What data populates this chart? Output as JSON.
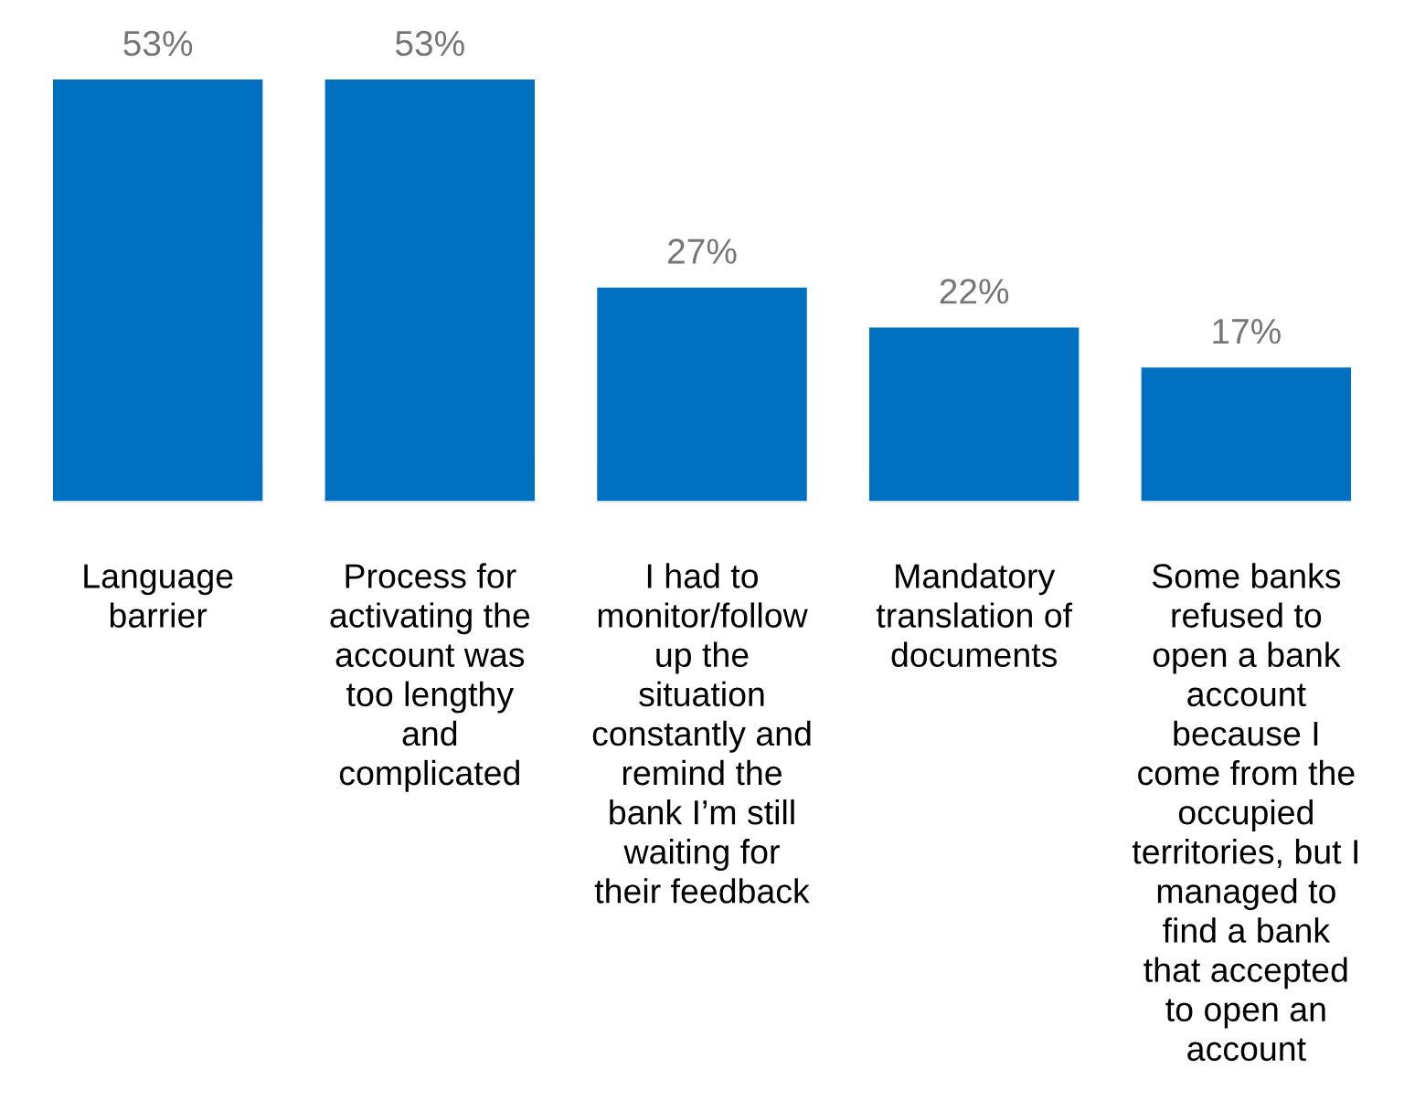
{
  "chart_data": {
    "type": "bar",
    "categories": [
      "Language\nbarrier",
      "Process for\nactivating the\naccount was\ntoo lengthy\nand\ncomplicated",
      "I had to\nmonitor/follow\nup the\nsituation\nconstantly and\nremind the\nbank I’m still\nwaiting for\ntheir feedback",
      "Mandatory\ntranslation of\ndocuments",
      "Some banks\nrefused to\nopen a bank\naccount\nbecause I\ncome from the\noccupied\nterritories, but I\nmanaged to\nfind a bank\nthat accepted\nto open an\naccount"
    ],
    "values": [
      53,
      53,
      27,
      22,
      17
    ],
    "value_labels": [
      "53%",
      "53%",
      "27%",
      "22%",
      "17%"
    ],
    "color": "#0070c0"
  }
}
